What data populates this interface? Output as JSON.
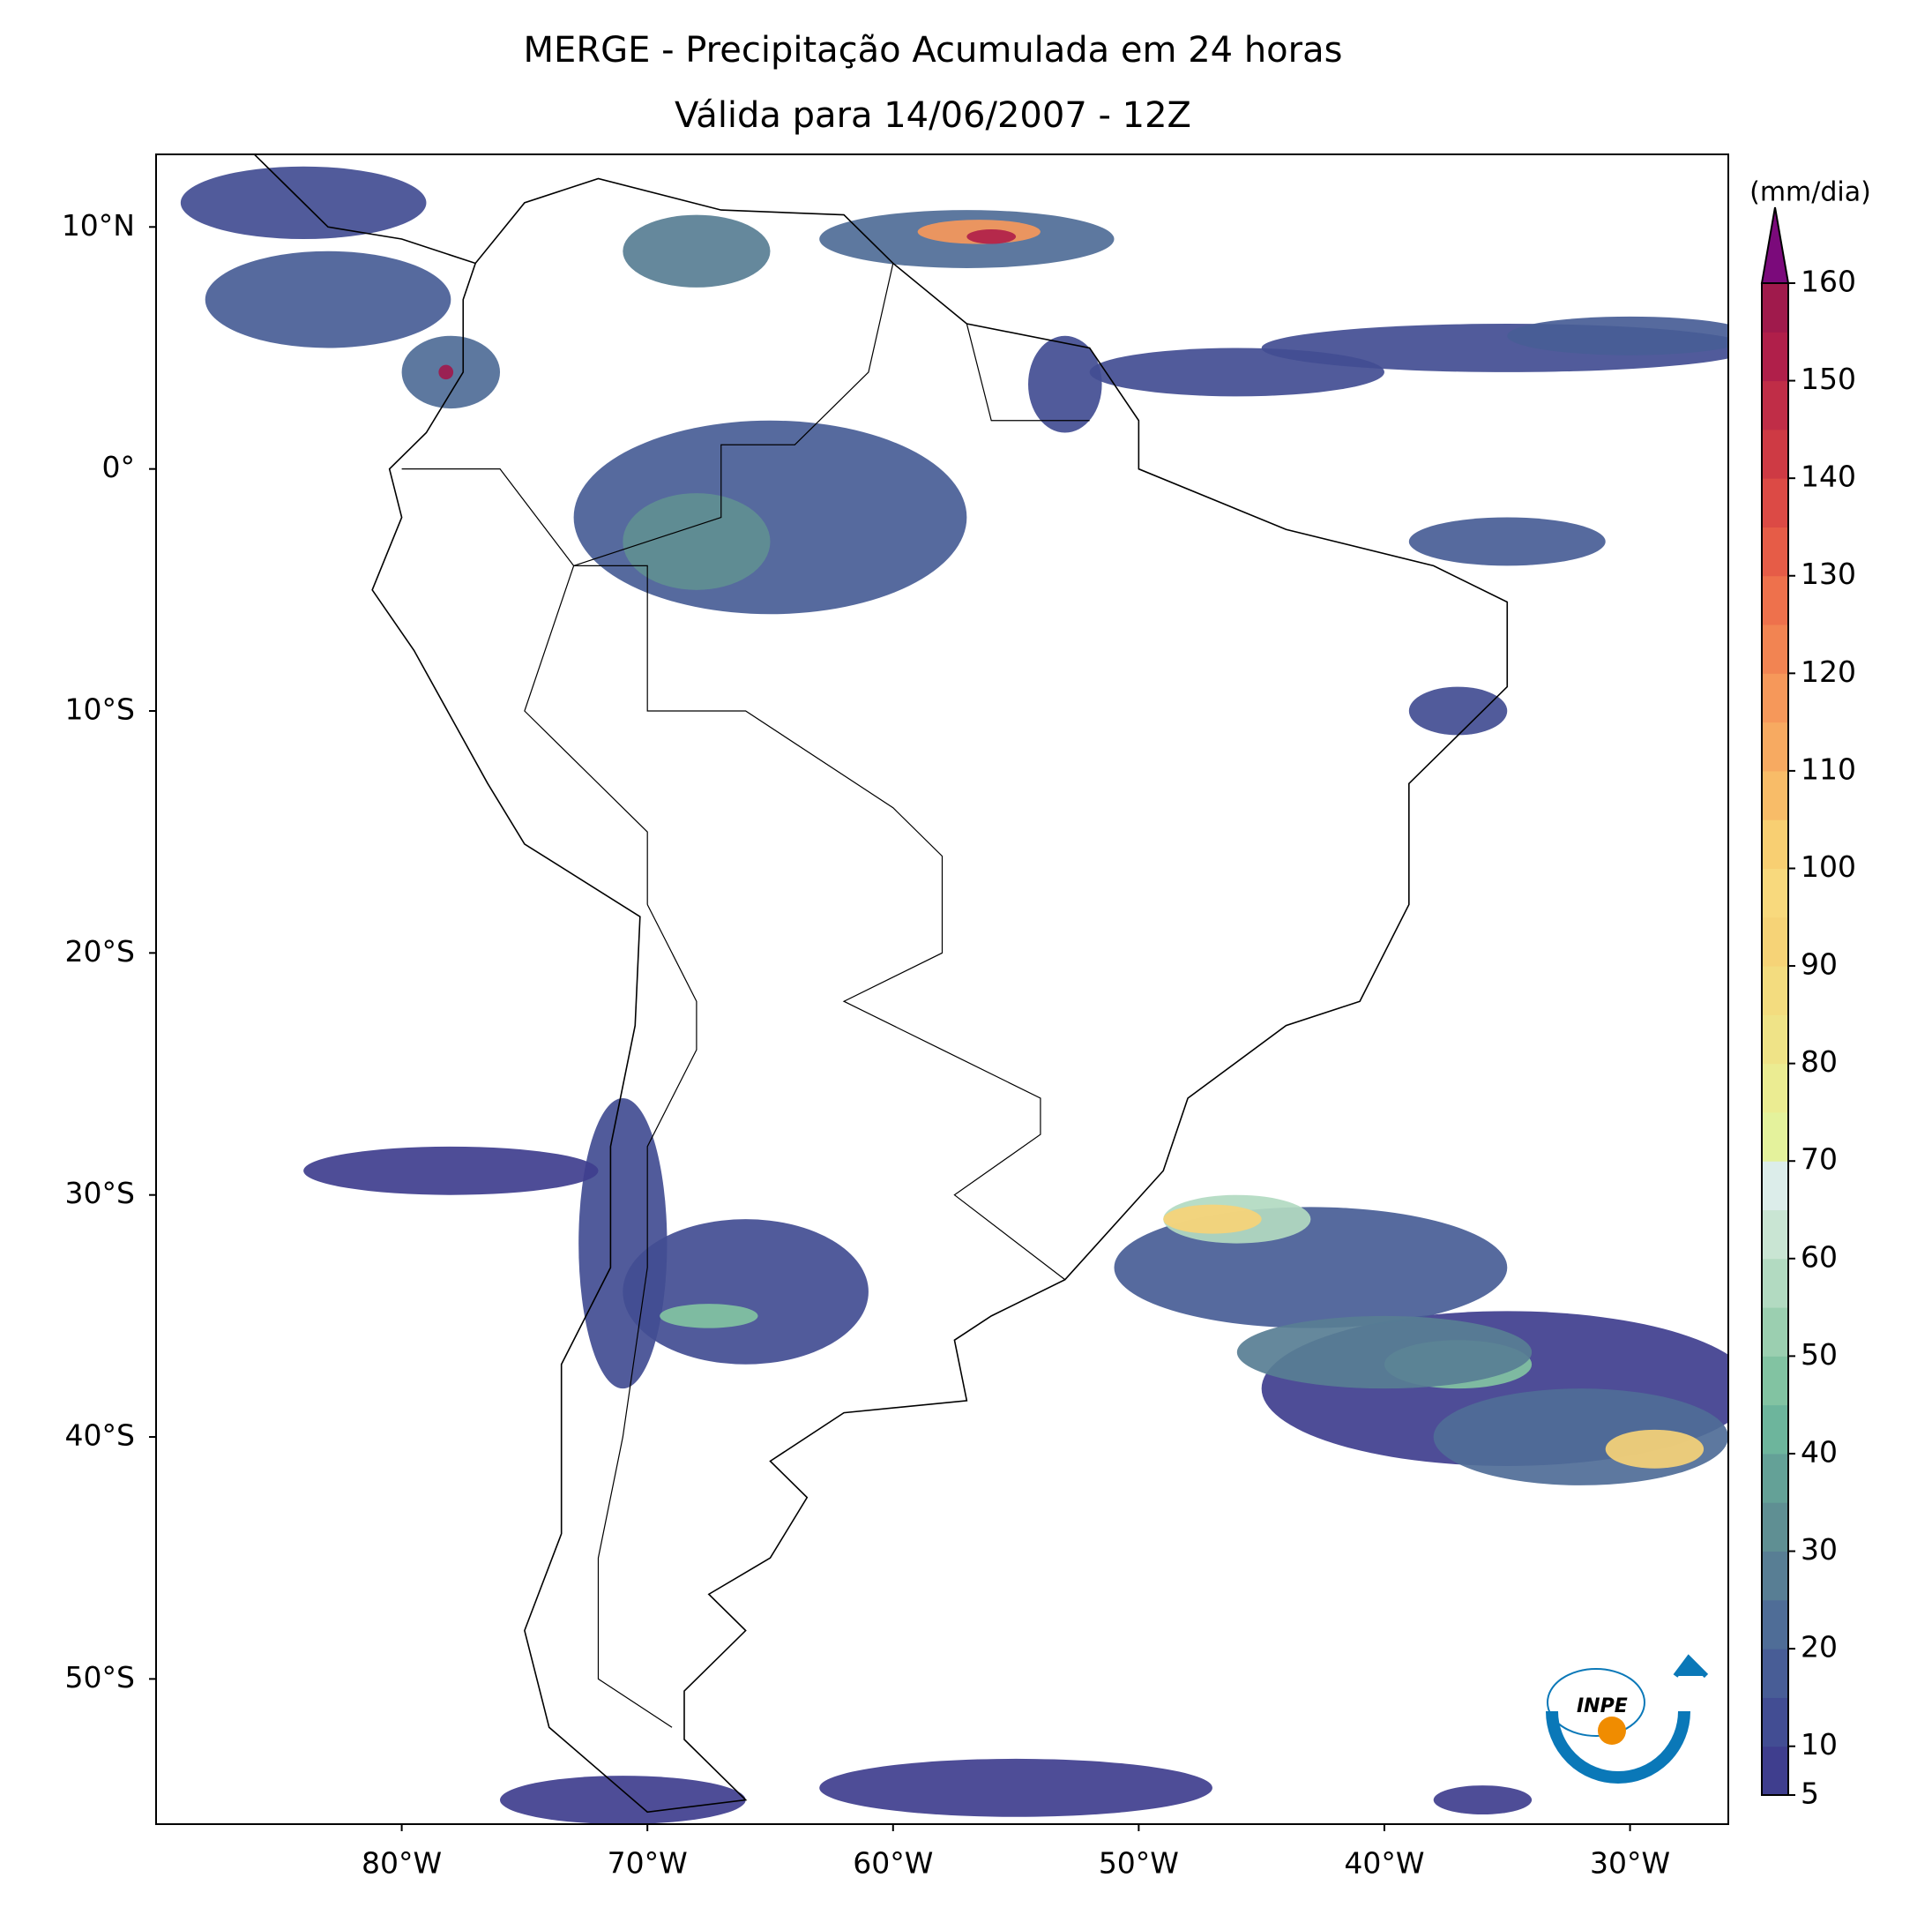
{
  "chart_data": {
    "type": "map",
    "title": [
      "MERGE - Precipitação Acumulada em 24 horas",
      "Válida para 14/06/2007 - 12Z"
    ],
    "xlim": [
      -90,
      -26
    ],
    "ylim": [
      -56,
      13
    ],
    "xticks": [
      {
        "value": -80,
        "label": "80°W"
      },
      {
        "value": -70,
        "label": "70°W"
      },
      {
        "value": -60,
        "label": "60°W"
      },
      {
        "value": -50,
        "label": "50°W"
      },
      {
        "value": -40,
        "label": "40°W"
      },
      {
        "value": -30,
        "label": "30°W"
      }
    ],
    "yticks": [
      {
        "value": 10,
        "label": "10°N"
      },
      {
        "value": 0,
        "label": "0°"
      },
      {
        "value": -10,
        "label": "10°S"
      },
      {
        "value": -20,
        "label": "20°S"
      },
      {
        "value": -30,
        "label": "30°S"
      },
      {
        "value": -40,
        "label": "40°S"
      },
      {
        "value": -50,
        "label": "50°S"
      }
    ],
    "colorbar": {
      "label": "(mm/dia)",
      "lim": [
        5,
        160
      ],
      "ticks": [
        5,
        10,
        20,
        30,
        40,
        50,
        60,
        70,
        80,
        90,
        100,
        110,
        120,
        130,
        140,
        150,
        160
      ],
      "colors": [
        "#3f3e8e",
        "#424d93",
        "#485d96",
        "#4f6d97",
        "#587e94",
        "#5f8f93",
        "#64a197",
        "#6db59c",
        "#82c3a2",
        "#9bcfb0",
        "#b2dac1",
        "#c9e5d3",
        "#dcedea",
        "#e4f29c",
        "#ebec92",
        "#efe387",
        "#f3dc7f",
        "#f6d377",
        "#f8d97d",
        "#f8cf72",
        "#f8bc68",
        "#f7aa61",
        "#f6985a",
        "#f28452",
        "#ee714c",
        "#e65c47",
        "#dc4a45",
        "#ce3a44",
        "#c02d47",
        "#b01f4a",
        "#a01a4c"
      ],
      "extend_color": "#7b0a7b"
    },
    "logo_text": "INPE"
  }
}
